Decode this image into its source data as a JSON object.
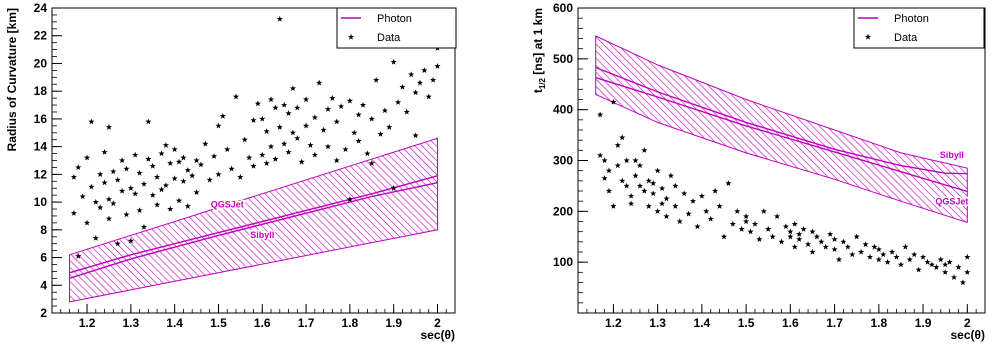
{
  "legend": {
    "line_label": "Photon",
    "marker_label": "Data"
  },
  "colors": {
    "model": "#c000c0",
    "data": "#000000",
    "frame": "#000000"
  },
  "chart_data": [
    {
      "type": "scatter",
      "xlabel": "sec(θ)",
      "ylabel": "Radius of Curvature [km]",
      "xlim": [
        1.12,
        2.04
      ],
      "ylim": [
        2,
        24
      ],
      "xticks": [
        1.2,
        1.3,
        1.4,
        1.5,
        1.6,
        1.7,
        1.8,
        1.9,
        2
      ],
      "yticks": [
        2,
        4,
        6,
        8,
        10,
        12,
        14,
        16,
        18,
        20,
        22,
        24
      ],
      "legend_position": "top-right",
      "band": {
        "x": [
          1.16,
          2.0
        ],
        "lower": [
          2.8,
          8.0
        ],
        "upper": [
          6.2,
          14.6
        ]
      },
      "series": [
        {
          "name": "QGSJet",
          "kind": "line",
          "x": [
            1.16,
            1.3,
            1.5,
            1.7,
            1.85,
            2.0
          ],
          "y": [
            4.9,
            6.2,
            7.8,
            9.4,
            10.6,
            11.9
          ]
        },
        {
          "name": "Sibyll",
          "kind": "line",
          "x": [
            1.16,
            1.3,
            1.5,
            1.7,
            1.85,
            2.0
          ],
          "y": [
            4.5,
            5.9,
            7.6,
            9.2,
            10.4,
            11.4
          ]
        },
        {
          "name": "Data",
          "kind": "scatter",
          "x": [
            1.17,
            1.17,
            1.18,
            1.18,
            1.19,
            1.2,
            1.2,
            1.21,
            1.21,
            1.22,
            1.22,
            1.23,
            1.23,
            1.24,
            1.24,
            1.25,
            1.25,
            1.25,
            1.26,
            1.26,
            1.27,
            1.27,
            1.28,
            1.28,
            1.29,
            1.29,
            1.3,
            1.3,
            1.31,
            1.31,
            1.32,
            1.32,
            1.33,
            1.33,
            1.34,
            1.34,
            1.35,
            1.35,
            1.36,
            1.36,
            1.37,
            1.37,
            1.38,
            1.38,
            1.39,
            1.39,
            1.4,
            1.4,
            1.41,
            1.41,
            1.42,
            1.42,
            1.43,
            1.43,
            1.44,
            1.45,
            1.45,
            1.46,
            1.47,
            1.48,
            1.49,
            1.5,
            1.5,
            1.51,
            1.52,
            1.53,
            1.54,
            1.55,
            1.56,
            1.57,
            1.58,
            1.58,
            1.59,
            1.6,
            1.6,
            1.61,
            1.61,
            1.62,
            1.62,
            1.63,
            1.63,
            1.64,
            1.64,
            1.65,
            1.65,
            1.66,
            1.66,
            1.67,
            1.67,
            1.68,
            1.68,
            1.69,
            1.7,
            1.7,
            1.71,
            1.72,
            1.72,
            1.73,
            1.74,
            1.75,
            1.75,
            1.76,
            1.77,
            1.77,
            1.78,
            1.79,
            1.8,
            1.8,
            1.81,
            1.82,
            1.82,
            1.83,
            1.84,
            1.85,
            1.85,
            1.86,
            1.87,
            1.88,
            1.89,
            1.9,
            1.9,
            1.91,
            1.92,
            1.93,
            1.94,
            1.95,
            1.95,
            1.96,
            1.97,
            1.98,
            1.99,
            2.0,
            2.0
          ],
          "y": [
            11.8,
            9.2,
            12.5,
            6.1,
            10.4,
            13.2,
            8.5,
            11.1,
            15.8,
            10.0,
            7.4,
            12.0,
            9.6,
            11.4,
            13.6,
            10.2,
            8.8,
            15.4,
            12.2,
            9.9,
            11.6,
            7.0,
            10.8,
            13.0,
            9.1,
            12.4,
            11.0,
            7.2,
            10.6,
            13.4,
            9.4,
            12.1,
            11.3,
            8.2,
            13.1,
            15.8,
            10.5,
            12.6,
            11.8,
            9.8,
            13.5,
            10.9,
            11.2,
            14.1,
            12.8,
            9.5,
            11.7,
            13.8,
            10.1,
            12.9,
            11.5,
            13.2,
            9.7,
            12.3,
            11.9,
            13.0,
            10.7,
            12.7,
            14.2,
            11.6,
            13.3,
            15.5,
            12.0,
            16.2,
            13.8,
            12.4,
            17.6,
            11.8,
            14.5,
            13.2,
            15.9,
            12.6,
            17.1,
            13.4,
            16.0,
            15.1,
            12.8,
            17.4,
            14.0,
            16.8,
            13.1,
            23.2,
            15.4,
            17.0,
            14.2,
            16.4,
            13.6,
            15.0,
            18.2,
            14.6,
            16.8,
            12.9,
            15.5,
            17.4,
            14.1,
            16.1,
            13.4,
            18.6,
            15.2,
            14.0,
            16.7,
            17.5,
            13.0,
            15.8,
            16.9,
            13.8,
            17.3,
            10.2,
            15.0,
            16.3,
            14.4,
            17.0,
            13.5,
            16.0,
            12.8,
            18.8,
            14.9,
            16.6,
            15.4,
            11.0,
            20.1,
            17.2,
            18.3,
            16.5,
            19.2,
            14.8,
            17.9,
            18.6,
            19.5,
            17.6,
            18.8,
            21.1,
            19.8
          ]
        }
      ],
      "annotations": [
        {
          "text": "QGSJet",
          "x": 1.52,
          "y": 9.6
        },
        {
          "text": "Sibyll",
          "x": 1.6,
          "y": 7.4
        }
      ]
    },
    {
      "type": "scatter",
      "xlabel": "sec(θ)",
      "ylabel": "t",
      "ylabel_sub": "1/2",
      "ylabel_rest": " [ns] at 1 km",
      "xlim": [
        1.12,
        2.04
      ],
      "ylim": [
        0,
        600
      ],
      "xticks": [
        1.2,
        1.3,
        1.4,
        1.5,
        1.6,
        1.7,
        1.8,
        1.9,
        2
      ],
      "yticks": [
        100,
        200,
        300,
        400,
        500,
        600
      ],
      "legend_position": "top-right",
      "band": {
        "x": [
          1.16,
          1.3,
          1.5,
          1.7,
          1.85,
          2.0
        ],
        "lower": [
          430,
          375,
          315,
          263,
          220,
          178
        ],
        "upper": [
          545,
          488,
          420,
          360,
          315,
          285
        ]
      },
      "series": [
        {
          "name": "Sibyll",
          "kind": "line",
          "x": [
            1.16,
            1.3,
            1.5,
            1.7,
            1.85,
            1.95,
            2.0
          ],
          "y": [
            483,
            435,
            375,
            322,
            290,
            275,
            274
          ]
        },
        {
          "name": "QGSJet",
          "kind": "line",
          "x": [
            1.16,
            1.3,
            1.5,
            1.7,
            1.85,
            2.0
          ],
          "y": [
            463,
            425,
            368,
            317,
            278,
            239
          ]
        },
        {
          "name": "Data",
          "kind": "scatter",
          "x": [
            1.17,
            1.17,
            1.18,
            1.18,
            1.19,
            1.19,
            1.2,
            1.2,
            1.21,
            1.21,
            1.22,
            1.22,
            1.23,
            1.23,
            1.24,
            1.24,
            1.25,
            1.25,
            1.26,
            1.26,
            1.27,
            1.27,
            1.28,
            1.28,
            1.29,
            1.29,
            1.3,
            1.3,
            1.31,
            1.31,
            1.32,
            1.32,
            1.33,
            1.34,
            1.34,
            1.35,
            1.36,
            1.37,
            1.38,
            1.39,
            1.4,
            1.41,
            1.42,
            1.43,
            1.44,
            1.45,
            1.46,
            1.47,
            1.48,
            1.49,
            1.5,
            1.5,
            1.51,
            1.52,
            1.53,
            1.54,
            1.55,
            1.56,
            1.57,
            1.58,
            1.59,
            1.6,
            1.6,
            1.61,
            1.61,
            1.62,
            1.62,
            1.63,
            1.64,
            1.65,
            1.65,
            1.66,
            1.67,
            1.68,
            1.69,
            1.7,
            1.7,
            1.71,
            1.72,
            1.73,
            1.74,
            1.75,
            1.76,
            1.77,
            1.78,
            1.79,
            1.8,
            1.8,
            1.81,
            1.82,
            1.83,
            1.84,
            1.85,
            1.86,
            1.87,
            1.88,
            1.89,
            1.9,
            1.91,
            1.92,
            1.93,
            1.94,
            1.95,
            1.95,
            1.96,
            1.97,
            1.98,
            1.99,
            2.0,
            2.0
          ],
          "y": [
            310,
            390,
            300,
            265,
            280,
            240,
            415,
            210,
            330,
            290,
            260,
            345,
            250,
            300,
            230,
            215,
            270,
            300,
            250,
            290,
            240,
            320,
            260,
            210,
            255,
            235,
            280,
            200,
            245,
            215,
            225,
            190,
            270,
            210,
            250,
            180,
            235,
            195,
            220,
            170,
            230,
            200,
            185,
            240,
            210,
            150,
            255,
            175,
            200,
            165,
            190,
            180,
            160,
            175,
            145,
            200,
            165,
            150,
            190,
            140,
            170,
            150,
            160,
            175,
            130,
            155,
            145,
            165,
            135,
            160,
            120,
            150,
            140,
            130,
            155,
            125,
            145,
            105,
            140,
            130,
            115,
            150,
            120,
            135,
            110,
            130,
            105,
            125,
            115,
            100,
            120,
            110,
            95,
            130,
            105,
            115,
            85,
            110,
            100,
            95,
            90,
            105,
            80,
            95,
            100,
            70,
            90,
            60,
            110,
            80
          ]
        }
      ],
      "annotations": [
        {
          "text": "Sibyll",
          "x": 1.965,
          "y": 305
        },
        {
          "text": "QGSJet",
          "x": 1.965,
          "y": 213
        }
      ]
    }
  ]
}
